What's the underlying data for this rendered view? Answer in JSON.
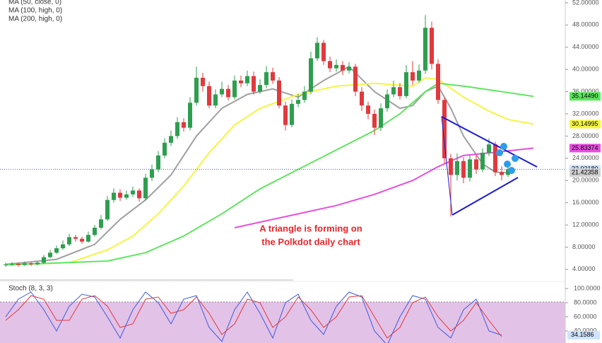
{
  "chart_data": {
    "type": "candlestick",
    "legend": [
      "MA (50, close, 0)",
      "MA (100, high, 0)",
      "MA (200, high, 0)"
    ],
    "annotation": [
      "A triangle is forming on",
      "the Polkdot daily chart"
    ],
    "up_color": "#2e9e4f",
    "down_color": "#e0393e",
    "open": [
      4.8,
      4.9,
      5.0,
      4.8,
      5.1,
      4.9,
      5.2,
      6.2,
      7.0,
      7.8,
      8.5,
      9.8,
      9.5,
      9.0,
      10.2,
      11.5,
      13.0,
      16.5,
      17.8,
      16.9,
      17.5,
      18.2,
      16.8,
      20.5,
      22.0,
      24.5,
      26.8,
      28.0,
      30.5,
      29.5,
      34.0,
      38.5,
      37.0,
      33.5,
      35.5,
      36.5,
      35.0,
      38.0,
      37.5,
      38.8,
      36.0,
      37.2,
      39.5,
      38.0,
      33.5,
      30.0,
      33.8,
      34.5,
      36.0,
      42.0,
      44.8,
      41.5,
      40.2,
      40.8,
      39.8,
      40.5,
      36.0,
      33.5,
      32.0,
      29.5,
      33.0,
      35.5,
      36.8,
      35.2,
      39.5,
      38.0,
      39.8,
      47.5,
      41.0,
      34.5,
      24.0,
      21.0,
      23.5,
      20.5,
      23.8,
      22.0,
      25.0,
      26.5,
      21.5,
      21.0
    ],
    "high": [
      5.2,
      5.3,
      5.2,
      5.4,
      5.3,
      5.5,
      6.6,
      7.5,
      8.3,
      9.2,
      10.4,
      10.2,
      9.9,
      10.8,
      12.0,
      13.8,
      17.2,
      18.6,
      18.4,
      18.2,
      18.9,
      18.6,
      21.2,
      22.9,
      25.3,
      27.6,
      29.0,
      31.4,
      31.2,
      35.0,
      40.5,
      39.4,
      37.8,
      36.4,
      37.8,
      37.2,
      38.9,
      38.9,
      39.8,
      39.6,
      38.2,
      40.6,
      40.3,
      38.6,
      34.2,
      34.6,
      35.6,
      37.0,
      43.2,
      45.8,
      45.3,
      42.3,
      41.8,
      41.5,
      41.3,
      41.0,
      36.8,
      34.2,
      32.8,
      33.9,
      36.4,
      38.0,
      37.6,
      40.8,
      41.5,
      40.9,
      49.8,
      48.6,
      41.8,
      35.0,
      24.8,
      24.9,
      24.2,
      24.6,
      24.5,
      25.8,
      27.6,
      27.0,
      22.6,
      22.9
    ],
    "low": [
      4.5,
      4.6,
      4.5,
      4.6,
      4.6,
      4.7,
      5.0,
      6.0,
      6.8,
      7.5,
      8.2,
      9.0,
      8.6,
      8.8,
      9.9,
      11.2,
      12.7,
      16.0,
      16.3,
      16.5,
      17.0,
      16.2,
      16.4,
      19.9,
      21.5,
      24.0,
      26.2,
      27.5,
      28.8,
      29.0,
      33.5,
      36.0,
      33.0,
      33.0,
      35.0,
      34.4,
      34.6,
      36.8,
      37.0,
      35.5,
      35.6,
      36.6,
      37.4,
      33.0,
      29.0,
      29.6,
      33.2,
      34.0,
      35.5,
      41.5,
      40.8,
      39.5,
      39.6,
      39.0,
      39.3,
      35.2,
      32.5,
      31.0,
      28.2,
      28.9,
      32.4,
      35.0,
      34.6,
      34.8,
      37.2,
      37.6,
      39.2,
      40.0,
      33.8,
      23.0,
      13.5,
      20.0,
      19.5,
      19.8,
      21.2,
      21.5,
      24.4,
      20.8,
      20.0,
      20.6
    ],
    "close": [
      4.9,
      5.0,
      4.8,
      5.1,
      4.9,
      5.2,
      6.2,
      7.0,
      7.8,
      8.5,
      9.8,
      9.5,
      9.0,
      10.2,
      11.5,
      13.0,
      16.5,
      17.8,
      16.9,
      17.5,
      18.2,
      16.8,
      20.5,
      22.0,
      24.5,
      26.8,
      28.0,
      30.5,
      29.5,
      34.0,
      38.5,
      37.0,
      33.5,
      35.5,
      36.5,
      35.0,
      38.0,
      37.5,
      38.8,
      36.0,
      37.2,
      39.5,
      38.0,
      33.5,
      30.0,
      33.8,
      34.5,
      36.0,
      42.0,
      44.8,
      41.5,
      40.2,
      40.8,
      39.8,
      40.5,
      36.0,
      33.5,
      32.0,
      29.5,
      33.0,
      35.5,
      36.8,
      35.2,
      39.5,
      38.0,
      39.8,
      47.5,
      41.0,
      34.5,
      24.0,
      21.0,
      23.5,
      20.5,
      23.8,
      22.0,
      25.0,
      26.5,
      21.5,
      21.0,
      22.0
    ],
    "ma_lines": [
      {
        "color": "#a0a0a0",
        "x": [
          0,
          8,
          14,
          18,
          22,
          26,
          30,
          34,
          38,
          42,
          46,
          50,
          54,
          58,
          62,
          64,
          66,
          68,
          70,
          72,
          75,
          77,
          79
        ],
        "values": [
          4.9,
          5.8,
          8.5,
          13,
          16.5,
          21,
          28,
          33,
          35.5,
          36.5,
          35,
          38,
          40.5,
          36,
          33,
          33.5,
          36,
          37,
          33,
          28,
          23,
          21.5,
          21.4
        ]
      },
      {
        "color": "#f5f542",
        "x": [
          0,
          10,
          16,
          20,
          24,
          28,
          32,
          36,
          40,
          46,
          52,
          58,
          64,
          66,
          68,
          72,
          76,
          79,
          83
        ],
        "values": [
          4.8,
          5.2,
          7.5,
          10,
          14,
          19,
          25,
          30,
          33,
          35.5,
          37,
          37.5,
          37,
          38.5,
          38.2,
          35,
          32.5,
          31,
          30.14995
        ]
      },
      {
        "color": "#5fe65f",
        "x": [
          0,
          16,
          22,
          28,
          34,
          40,
          46,
          52,
          58,
          62,
          66,
          68,
          72,
          78,
          83
        ],
        "values": [
          4.8,
          5.5,
          7,
          10,
          14,
          18.5,
          22,
          25.5,
          29,
          32,
          36,
          37.5,
          37,
          36,
          35.1449
        ]
      },
      {
        "color": "#e64fe0",
        "x": [
          36,
          40,
          46,
          52,
          58,
          64,
          68,
          72,
          78,
          83
        ],
        "values": [
          11.5,
          12.5,
          14,
          15.5,
          17.5,
          20,
          22.5,
          24.5,
          25.2,
          25.83374
        ]
      }
    ],
    "price_labels": [
      {
        "value": 35.1449,
        "label": "35.14490",
        "color": "#5fe65f"
      },
      {
        "value": 30.14995,
        "label": "30.14995",
        "color": "#f5f542"
      },
      {
        "value": 25.83374,
        "label": "25.83374",
        "color": "#e64fe0"
      },
      {
        "value": 22.0218,
        "label": "22.02180",
        "color": "#cfe3ff"
      },
      {
        "value": 21.42358,
        "label": "21.42358",
        "color": "#d0d0d0"
      }
    ],
    "ylim": [
      2.2,
      52.5
    ],
    "yticks": [
      {
        "value": 4,
        "label": "4.00000"
      },
      {
        "value": 8,
        "label": "8.00000"
      },
      {
        "value": 12,
        "label": "12.00000"
      },
      {
        "value": 16,
        "label": "16.00000"
      },
      {
        "value": 20,
        "label": "20.00000"
      },
      {
        "value": 24,
        "label": "24.00000"
      },
      {
        "value": 28,
        "label": "28.00000"
      },
      {
        "value": 32,
        "label": "32.00000"
      },
      {
        "value": 36,
        "label": "36.00000"
      },
      {
        "value": 40,
        "label": "40.00000"
      },
      {
        "value": 44,
        "label": "44.00000"
      },
      {
        "value": 48,
        "label": "48.00000"
      },
      {
        "value": 52,
        "label": "52.00000"
      }
    ],
    "stoch": {
      "title": "Stoch (8, 3, 3)",
      "ylim": [
        23,
        110
      ],
      "yticks": [
        {
          "value": 40,
          "label": "40.0000"
        },
        {
          "value": 60,
          "label": "60.0000"
        },
        {
          "value": 80,
          "label": "80.0000"
        },
        {
          "value": 100,
          "label": "100.0000"
        }
      ],
      "x": [
        0,
        2,
        4,
        6,
        8,
        10,
        12,
        14,
        16,
        18,
        20,
        22,
        24,
        26,
        28,
        30,
        32,
        34,
        36,
        38,
        40,
        42,
        44,
        46,
        48,
        50,
        52,
        54,
        56,
        58,
        60,
        62,
        64,
        66,
        68,
        70,
        72,
        74,
        76,
        78
      ],
      "series": [
        {
          "color": "#3b5bdb",
          "values": [
            60,
            85,
            95,
            70,
            40,
            75,
            92,
            88,
            60,
            30,
            70,
            95,
            80,
            50,
            85,
            90,
            45,
            25,
            70,
            95,
            65,
            30,
            80,
            92,
            55,
            35,
            75,
            95,
            88,
            40,
            20,
            60,
            90,
            85,
            45,
            30,
            70,
            85,
            40,
            34.1586
          ]
        },
        {
          "color": "#e0393e",
          "values": [
            55,
            70,
            90,
            85,
            55,
            55,
            85,
            90,
            75,
            45,
            50,
            85,
            88,
            65,
            70,
            88,
            65,
            35,
            50,
            85,
            80,
            45,
            60,
            88,
            70,
            45,
            60,
            88,
            90,
            60,
            30,
            45,
            80,
            88,
            60,
            40,
            55,
            80,
            55,
            32
          ]
        }
      ]
    }
  }
}
